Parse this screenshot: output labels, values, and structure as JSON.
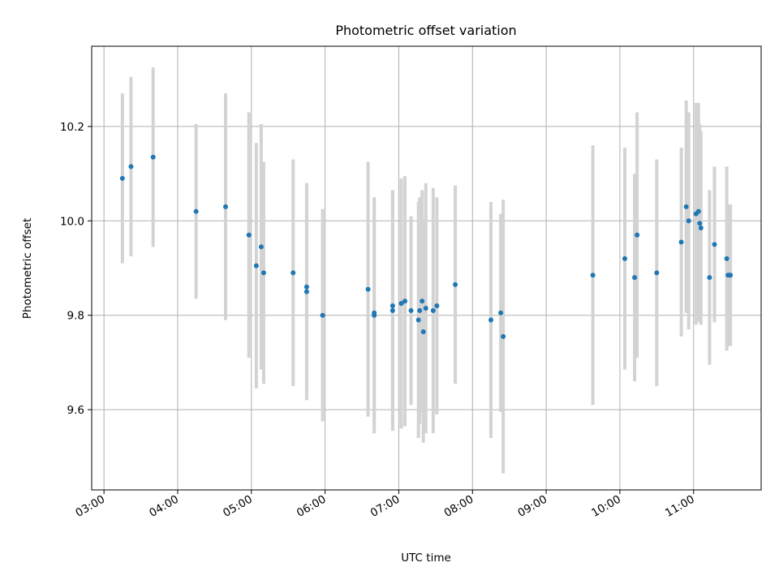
{
  "chart_data": {
    "type": "scatter",
    "title": "Photometric offset variation",
    "xlabel": "UTC time",
    "ylabel": "Photometric offset",
    "x_axis_type": "time",
    "xlim": [
      "02:50",
      "11:55"
    ],
    "ylim": [
      9.43,
      10.37
    ],
    "x_ticks": [
      "03:00",
      "04:00",
      "05:00",
      "06:00",
      "07:00",
      "08:00",
      "09:00",
      "10:00",
      "11:00"
    ],
    "y_ticks": [
      "9.6",
      "9.8",
      "10.0",
      "10.2"
    ],
    "grid": true,
    "legend": "none",
    "colors": {
      "point": "#1f77b4",
      "errorbar": "#d3d3d3",
      "grid": "#b0b0b0"
    },
    "series": [
      {
        "x": [
          "03:15",
          "03:22",
          "03:40",
          "04:15",
          "04:39",
          "04:58",
          "05:04",
          "05:08",
          "05:10",
          "05:34",
          "05:45",
          "05:45",
          "05:58",
          "06:35",
          "06:40",
          "06:40",
          "06:55",
          "06:55",
          "07:02",
          "07:05",
          "07:10",
          "07:16",
          "07:17",
          "07:19",
          "07:20",
          "07:22",
          "07:28",
          "07:31",
          "07:46",
          "08:15",
          "08:23",
          "08:25",
          "09:38",
          "10:04",
          "10:12",
          "10:14",
          "10:30",
          "10:50",
          "10:54",
          "10:56",
          "11:02",
          "11:04",
          "11:05",
          "11:06",
          "11:13",
          "11:17",
          "11:27",
          "11:28",
          "11:29",
          "11:30"
        ],
        "y": [
          10.09,
          10.115,
          10.135,
          10.02,
          10.03,
          9.97,
          9.905,
          9.945,
          9.89,
          9.89,
          9.85,
          9.86,
          9.8,
          9.855,
          9.8,
          9.805,
          9.81,
          9.82,
          9.825,
          9.83,
          9.81,
          9.79,
          9.81,
          9.83,
          9.765,
          9.815,
          9.81,
          9.82,
          9.865,
          9.79,
          9.805,
          9.755,
          9.885,
          9.92,
          9.88,
          9.97,
          9.89,
          9.955,
          10.03,
          10.0,
          10.015,
          10.02,
          9.995,
          9.985,
          9.88,
          9.95,
          9.92,
          9.885,
          9.885,
          9.885
        ],
        "err": [
          0.18,
          0.19,
          0.19,
          0.185,
          0.24,
          0.26,
          0.26,
          0.26,
          0.235,
          0.24,
          0.23,
          0.22,
          0.225,
          0.27,
          0.25,
          0.24,
          0.255,
          0.245,
          0.265,
          0.265,
          0.2,
          0.25,
          0.24,
          0.235,
          0.235,
          0.265,
          0.26,
          0.23,
          0.21,
          0.25,
          0.21,
          0.29,
          0.275,
          0.235,
          0.22,
          0.26,
          0.24,
          0.2,
          0.225,
          0.23,
          0.235,
          0.23,
          0.21,
          0.205,
          0.185,
          0.165,
          0.195,
          0.145,
          0.15,
          0.15
        ]
      }
    ]
  }
}
